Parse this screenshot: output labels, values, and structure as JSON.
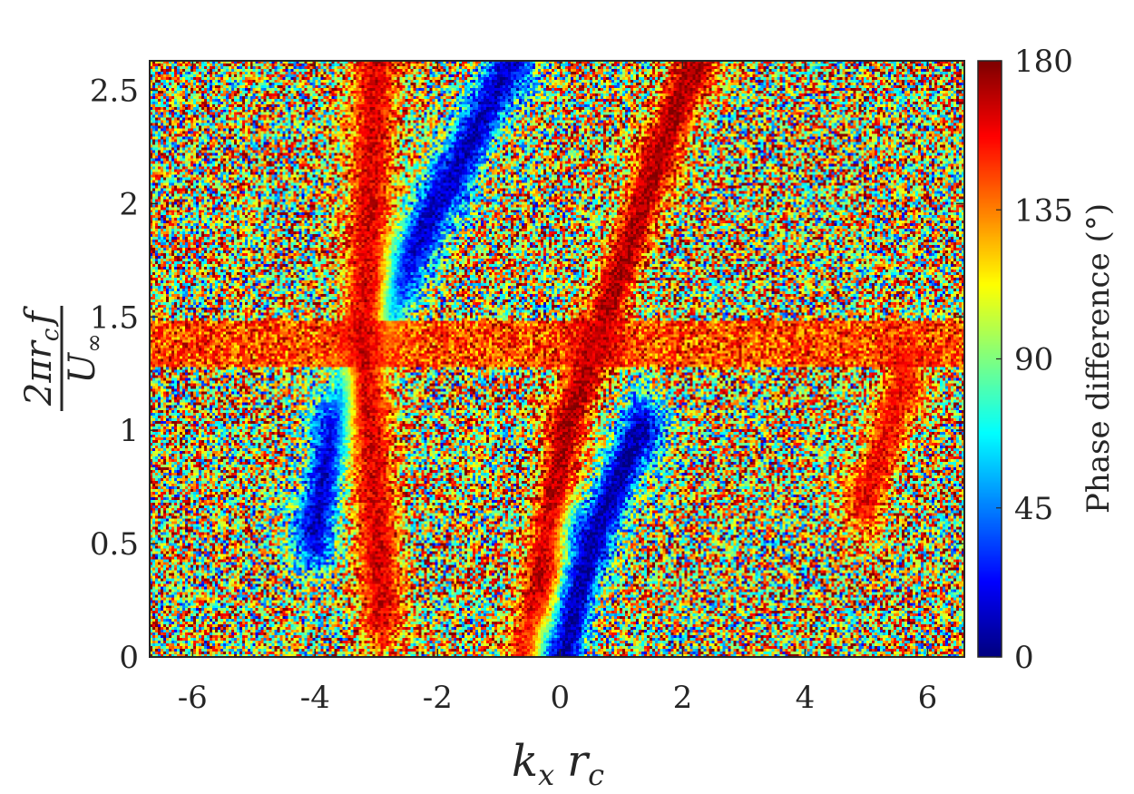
{
  "chart_data": {
    "type": "heatmap",
    "title": "",
    "xlabel": "k_x r_c",
    "ylabel": "2πr_c f / U_∞",
    "ylabel_parts": {
      "numerator": "2πr",
      "numerator_sub": "c",
      "numerator_tail": "f",
      "denominator": "U",
      "denominator_sub": "∞"
    },
    "xlabel_parts": {
      "k": "k",
      "k_sub": "x",
      "r": "r",
      "r_sub": "c"
    },
    "xlim": [
      -6.7,
      6.6
    ],
    "ylim": [
      0,
      2.63
    ],
    "xticks": [
      -6,
      -4,
      -2,
      0,
      2,
      4,
      6
    ],
    "xtick_labels": [
      "-6",
      "-4",
      "-2",
      "0",
      "2",
      "4",
      "6"
    ],
    "yticks": [
      0,
      0.5,
      1,
      1.5,
      2,
      2.5
    ],
    "ytick_labels": [
      "0",
      "0.5",
      "1",
      "1.5",
      "2",
      "2.5"
    ],
    "colormap": "jet",
    "colorbar": {
      "label": "Phase difference (°)",
      "min": 0,
      "max": 180,
      "ticks": [
        0,
        45,
        90,
        135,
        180
      ],
      "tick_labels": [
        "0",
        "45",
        "90",
        "135",
        "180"
      ]
    },
    "background_field": "noisy, mean phase ≈ 90–120°",
    "features": [
      {
        "name": "red band (≈180°) through origin",
        "value": 175,
        "points": [
          [
            -0.5,
            0
          ],
          [
            0.1,
            1.0
          ],
          [
            0.6,
            1.4
          ],
          [
            1.6,
            2.2
          ],
          [
            2.2,
            2.63
          ]
        ]
      },
      {
        "name": "blue band (≈0°) right of origin",
        "value": 5,
        "points": [
          [
            0.05,
            0
          ],
          [
            0.5,
            0.5
          ],
          [
            1.3,
            1.0
          ]
        ]
      },
      {
        "name": "blue band (≈0°) left",
        "value": 10,
        "points": [
          [
            -4.0,
            0.55
          ],
          [
            -3.7,
            1.0
          ],
          [
            -2.6,
            1.7
          ],
          [
            -1.8,
            2.1
          ],
          [
            -0.8,
            2.63
          ]
        ]
      },
      {
        "name": "red band (≈180°) left",
        "value": 165,
        "points": [
          [
            -2.9,
            0.2
          ],
          [
            -3.2,
            1.4
          ],
          [
            -3.0,
            2.63
          ]
        ]
      },
      {
        "name": "red band (≈180°) right",
        "value": 160,
        "points": [
          [
            5.0,
            0.7
          ],
          [
            5.6,
            1.2
          ]
        ]
      },
      {
        "name": "horizontal red band",
        "value": 165,
        "y_range": [
          1.28,
          1.48
        ]
      }
    ]
  }
}
